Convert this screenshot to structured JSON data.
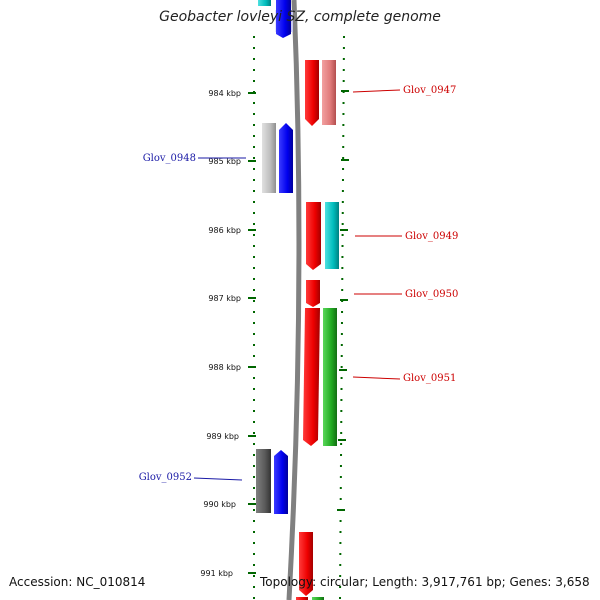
{
  "header": {
    "title": "Geobacter lovleyi SZ, complete genome"
  },
  "footer": {
    "accession": "Accession: NC_010814",
    "summary": "Topology: circular; Length: 3,917,761 bp; Genes: 3,658"
  },
  "ruler": {
    "tick_labels": [
      "984 kbp",
      "985 kbp",
      "986 kbp",
      "987 kbp",
      "988 kbp",
      "989 kbp",
      "990 kbp",
      "991 kbp"
    ]
  },
  "gene_labels": {
    "glov_0947": "Glov_0947",
    "glov_0948": "Glov_0948",
    "glov_0949": "Glov_0949",
    "glov_0950": "Glov_0950",
    "glov_0951": "Glov_0951",
    "glov_0952": "Glov_0952"
  },
  "colors": {
    "backbone": "#808080",
    "red": "#ee0000",
    "pink": "#e07a7a",
    "blue": "#0000ee",
    "grey_light": "#bdbdbd",
    "grey_dark": "#5a5a5a",
    "cyan": "#00bcbc",
    "green": "#22aa22",
    "tick_green": "#006600",
    "label_red": "#cc0000",
    "label_blue": "#1a1aa6"
  }
}
